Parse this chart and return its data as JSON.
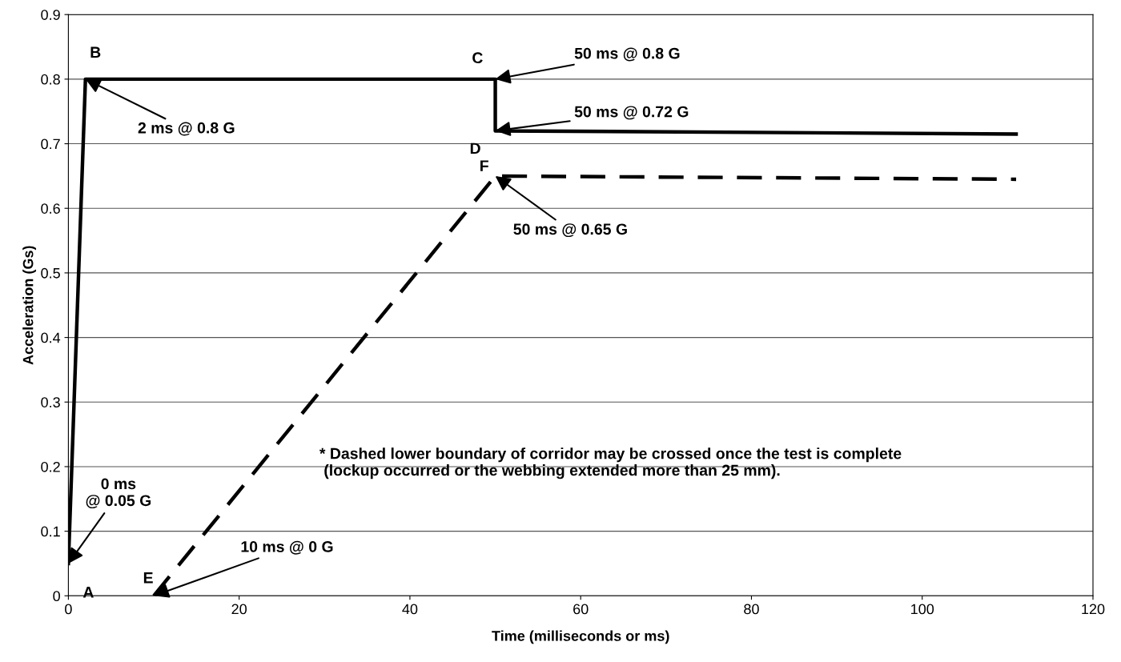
{
  "chart_data": {
    "type": "line",
    "xlabel": "Time (milliseconds or ms)",
    "ylabel": "Acceleration (Gs)",
    "xlim": [
      0,
      120
    ],
    "xticks": [
      0,
      20,
      40,
      60,
      80,
      100,
      120
    ],
    "ylim": [
      0,
      0.9
    ],
    "yticks": [
      0,
      0.1,
      0.2,
      0.3,
      0.4,
      0.5,
      0.6,
      0.7,
      0.8,
      0.9
    ],
    "grid": "y",
    "legend": false,
    "marker": "none",
    "series": [
      {
        "color": "#000000",
        "line_style": "solid",
        "x": [
          0,
          2,
          50,
          50,
          111
        ],
        "values": [
          0.05,
          0.8,
          0.8,
          0.72,
          0.715
        ]
      },
      {
        "color": "#000000",
        "line_style": "dashed",
        "x": [
          10,
          50,
          111
        ],
        "values": [
          0,
          0.65,
          0.645
        ]
      }
    ],
    "annotations": [
      {
        "text": "A",
        "x": 0,
        "y": 0.05
      },
      {
        "text": "B",
        "x": 2,
        "y": 0.8
      },
      {
        "text": "C",
        "x": 50,
        "y": 0.8
      },
      {
        "text": "D",
        "x": 50,
        "y": 0.72
      },
      {
        "text": "E",
        "x": 10,
        "y": 0
      },
      {
        "text": "F",
        "x": 50,
        "y": 0.65
      },
      {
        "text": "0 ms\n@ 0.05 G",
        "x": 0,
        "y": 0.05
      },
      {
        "text": "2 ms @ 0.8 G",
        "x": 2,
        "y": 0.8
      },
      {
        "text": "50 ms @ 0.8 G",
        "x": 50,
        "y": 0.8
      },
      {
        "text": "50 ms @ 0.72 G",
        "x": 50,
        "y": 0.72
      },
      {
        "text": "50 ms @ 0.65 G",
        "x": 50,
        "y": 0.65
      },
      {
        "text": "10 ms @ 0 G",
        "x": 10,
        "y": 0
      },
      "* Dashed lower boundary of corridor may be crossed once the test is complete\n (lockup occurred or the webbing extended more than 25 mm)."
    ]
  }
}
